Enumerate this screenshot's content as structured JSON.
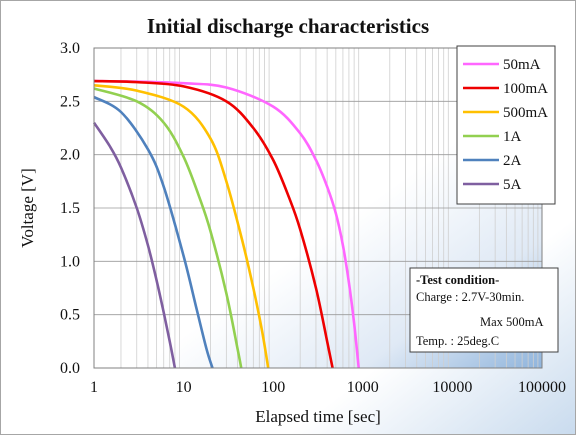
{
  "chart_data": {
    "type": "line",
    "title": "Initial discharge characteristics",
    "xlabel": "Elapsed time [sec]",
    "ylabel": "Voltage [V]",
    "x_scale": "log",
    "xlim": [
      1,
      100000
    ],
    "ylim": [
      0,
      3.0
    ],
    "x_ticks": [
      "1",
      "10",
      "100",
      "1000",
      "10000",
      "100000"
    ],
    "y_ticks": [
      "0.0",
      "0.5",
      "1.0",
      "1.5",
      "2.0",
      "2.5",
      "3.0"
    ],
    "grid": {
      "horizontal": true,
      "vertical_minor": true
    },
    "legend_position": "top-right",
    "series": [
      {
        "name": "50mA",
        "color": "#ff66ff",
        "x": [
          1,
          3,
          10,
          30,
          100,
          200,
          300,
          400,
          500,
          600,
          700,
          800,
          900
        ],
        "y": [
          2.69,
          2.685,
          2.67,
          2.63,
          2.45,
          2.2,
          1.95,
          1.7,
          1.45,
          1.15,
          0.8,
          0.42,
          0.0
        ]
      },
      {
        "name": "100mA",
        "color": "#ee0000",
        "x": [
          1,
          3,
          10,
          30,
          60,
          100,
          150,
          200,
          300,
          400,
          460
        ],
        "y": [
          2.69,
          2.68,
          2.64,
          2.5,
          2.25,
          1.95,
          1.6,
          1.3,
          0.75,
          0.25,
          0.0
        ]
      },
      {
        "name": "500mA",
        "color": "#ffc000",
        "x": [
          1,
          3,
          10,
          20,
          30,
          45,
          60,
          75,
          88
        ],
        "y": [
          2.65,
          2.6,
          2.45,
          2.15,
          1.75,
          1.2,
          0.75,
          0.35,
          0.0
        ]
      },
      {
        "name": "1A",
        "color": "#92d050",
        "x": [
          1,
          3,
          6,
          10,
          15,
          20,
          30,
          40,
          44
        ],
        "y": [
          2.62,
          2.5,
          2.3,
          1.98,
          1.6,
          1.28,
          0.7,
          0.18,
          0.0
        ]
      },
      {
        "name": "2A",
        "color": "#4f81bd",
        "x": [
          1,
          2,
          4,
          6,
          10,
          14,
          18,
          21
        ],
        "y": [
          2.54,
          2.4,
          2.05,
          1.7,
          1.05,
          0.55,
          0.18,
          0.0
        ]
      },
      {
        "name": "5A",
        "color": "#7f5fa0",
        "x": [
          1,
          1.5,
          2,
          3,
          4,
          5,
          6,
          7,
          8
        ],
        "y": [
          2.3,
          2.08,
          1.88,
          1.5,
          1.15,
          0.82,
          0.52,
          0.25,
          0.0
        ]
      }
    ],
    "annotation": {
      "heading": "-Test condition-",
      "lines": [
        "Charge : 2.7V-30min.",
        "Max 500mA",
        "Temp. : 25deg.C"
      ]
    }
  }
}
